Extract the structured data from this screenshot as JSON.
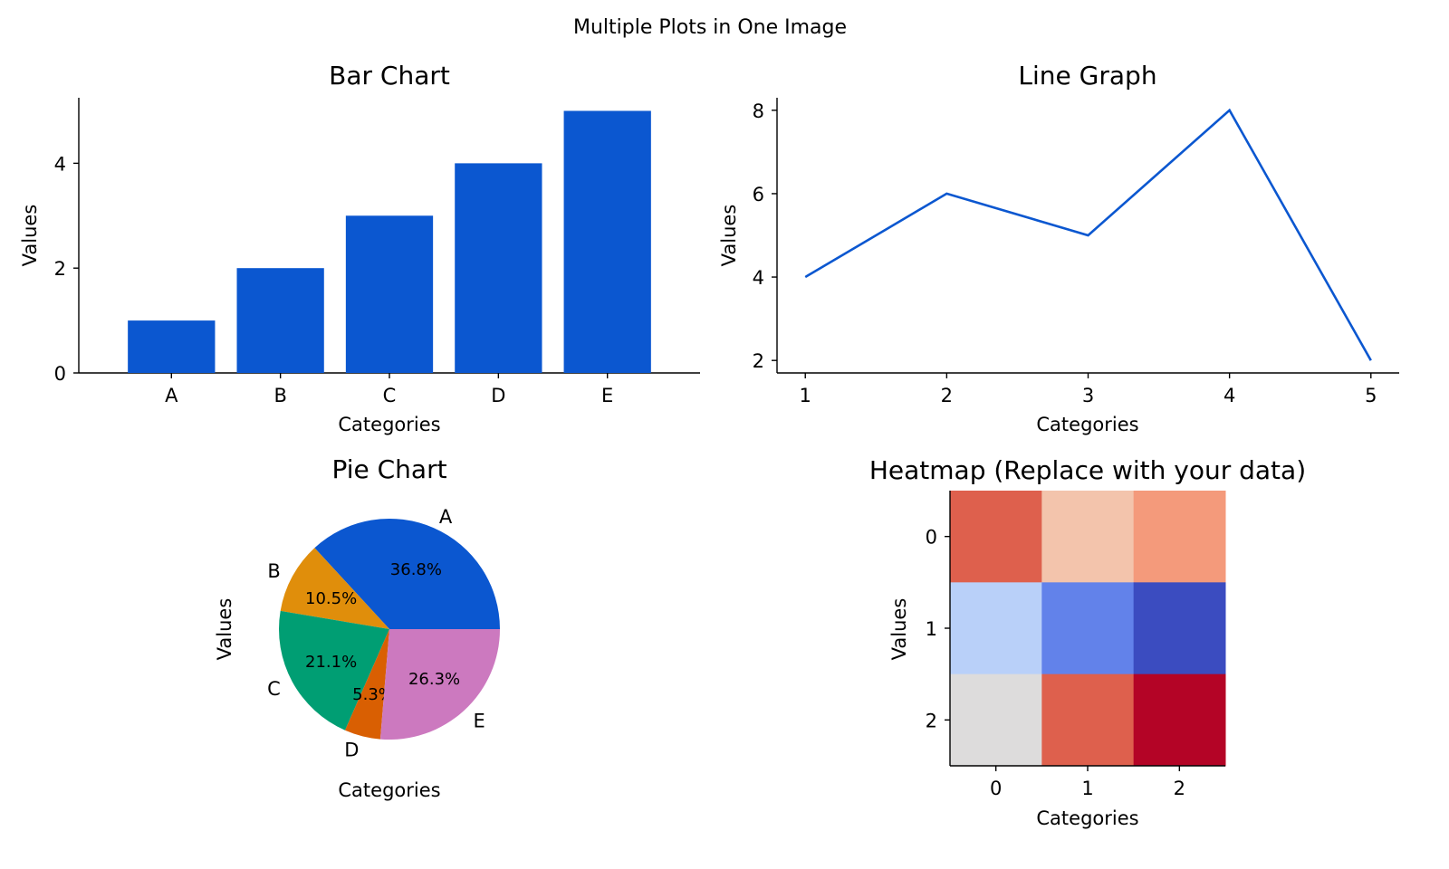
{
  "figure": {
    "title": "Multiple Plots in One Image"
  },
  "chart_data": [
    {
      "type": "bar",
      "title": "Bar Chart",
      "xlabel": "Categories",
      "ylabel": "Values",
      "categories": [
        "A",
        "B",
        "C",
        "D",
        "E"
      ],
      "values": [
        1,
        2,
        3,
        4,
        5
      ],
      "ylim": [
        0,
        5.25
      ],
      "yticks": [
        "0",
        "2",
        "4"
      ],
      "color": "#0b57d0",
      "grid": false
    },
    {
      "type": "line",
      "title": "Line Graph",
      "xlabel": "Categories",
      "ylabel": "Values",
      "x": [
        1,
        2,
        3,
        4,
        5
      ],
      "y": [
        4,
        6,
        5,
        8,
        2
      ],
      "xlim": [
        0.8,
        5.2
      ],
      "ylim": [
        1.7,
        8.3
      ],
      "xticks": [
        "1",
        "2",
        "3",
        "4",
        "5"
      ],
      "yticks": [
        "2",
        "4",
        "6",
        "8"
      ],
      "color": "#0b57d0",
      "grid": false
    },
    {
      "type": "pie",
      "title": "Pie Chart",
      "xlabel": "Categories",
      "ylabel": "Values",
      "labels": [
        "A",
        "B",
        "C",
        "D",
        "E"
      ],
      "values": [
        7,
        2,
        4,
        1,
        5
      ],
      "percent_labels": [
        "36.8%",
        "10.5%",
        "21.1%",
        "5.3%",
        "26.3%"
      ],
      "colors": [
        "#0b57d0",
        "#e08e0b",
        "#009e73",
        "#d95f02",
        "#cc79bf"
      ]
    },
    {
      "type": "heatmap",
      "title": "Heatmap (Replace with your data)",
      "xlabel": "Categories",
      "ylabel": "Values",
      "xticks": [
        "0",
        "1",
        "2"
      ],
      "yticks": [
        "0",
        "1",
        "2"
      ],
      "values": [
        [
          0.85,
          0.62,
          0.72
        ],
        [
          0.28,
          0.12,
          0.0
        ],
        [
          0.5,
          0.85,
          1.0
        ]
      ],
      "colors": [
        [
          "#de604d",
          "#f3c4ac",
          "#f49a7b"
        ],
        [
          "#b9d0f9",
          "#6282ea",
          "#3b4cc0"
        ],
        [
          "#dddcdc",
          "#de604d",
          "#b40426"
        ]
      ]
    }
  ]
}
